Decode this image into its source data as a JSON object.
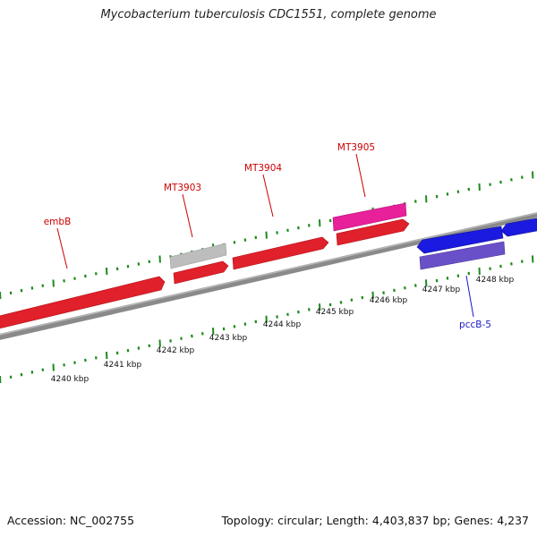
{
  "title": "Mycobacterium tuberculosis CDC1551, complete genome",
  "footer": {
    "accession": "Accession: NC_002755",
    "summary": "Topology: circular; Length: 4,403,837 bp; Genes: 4,237"
  },
  "ticks": [
    {
      "label": "4240 kbp"
    },
    {
      "label": "4241 kbp"
    },
    {
      "label": "4242 kbp"
    },
    {
      "label": "4243 kbp"
    },
    {
      "label": "4244 kbp"
    },
    {
      "label": "4245 kbp"
    },
    {
      "label": "4246 kbp"
    },
    {
      "label": "4247 kbp"
    },
    {
      "label": "4248 kbp"
    }
  ],
  "genes": [
    {
      "name": "embB",
      "color": "#e0202a",
      "strand": "forward",
      "label_color": "#cc0000"
    },
    {
      "name": "MT3903",
      "color": "#b8b8b8",
      "strand": "forward",
      "label_color": "#cc0000"
    },
    {
      "name": "MT3904",
      "color": "#e0202a",
      "strand": "forward",
      "label_color": "#cc0000"
    },
    {
      "name": "MT3905",
      "color": "#e8209a",
      "strand": "forward",
      "label_color": "#cc0000"
    },
    {
      "name": "pccB-5",
      "color": "#6a50c8",
      "strand": "reverse",
      "label_color": "#1a1ac8"
    }
  ],
  "colors": {
    "backbone": "#8a8a8a",
    "tick": "#1e8a1e",
    "cds_red": "#e0202a",
    "cds_blue": "#1a1ae0"
  }
}
